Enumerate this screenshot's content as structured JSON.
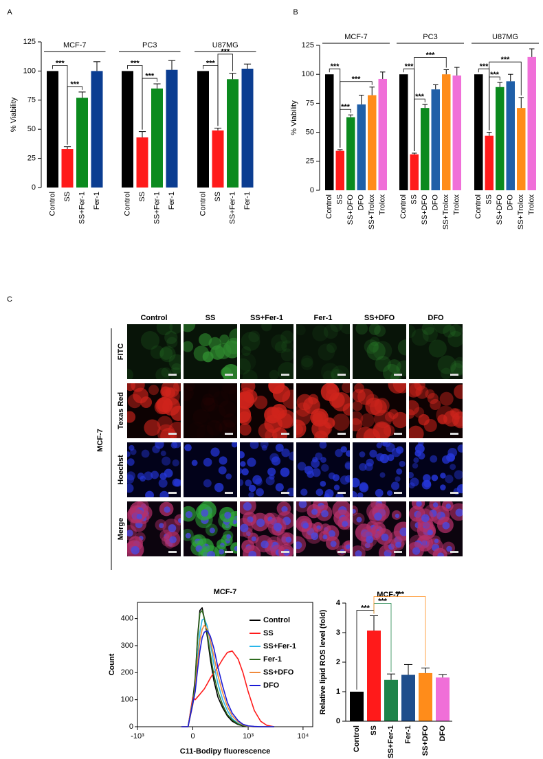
{
  "panel_labels": [
    "A",
    "B",
    "C"
  ],
  "chart_data": [
    {
      "type": "bar",
      "ylabel": "% Viability",
      "ylim": [
        0,
        125
      ],
      "yticks": [
        0,
        25,
        50,
        75,
        100,
        125
      ],
      "colors": [
        "#000000",
        "#ff1a1a",
        "#0b8a1e",
        "#0b3d91"
      ],
      "groups": [
        {
          "name": "MCF-7",
          "categories": [
            "Control",
            "SS",
            "SS+Fer-1",
            "Fer-1"
          ],
          "values": [
            100,
            33,
            77,
            100
          ],
          "errors": [
            0,
            2,
            5,
            8
          ],
          "significance": [
            {
              "label": "***",
              "between": [
                0,
                1
              ]
            },
            {
              "label": "***",
              "between": [
                1,
                2
              ]
            }
          ]
        },
        {
          "name": "PC3",
          "categories": [
            "Control",
            "SS",
            "SS+Fer-1",
            "Fer-1"
          ],
          "values": [
            100,
            43,
            85,
            101
          ],
          "errors": [
            0,
            5,
            4,
            8
          ],
          "significance": [
            {
              "label": "***",
              "between": [
                0,
                1
              ]
            },
            {
              "label": "***",
              "between": [
                1,
                2
              ]
            }
          ]
        },
        {
          "name": "U87MG",
          "categories": [
            "Control",
            "SS",
            "SS+Fer-1",
            "Fer-1"
          ],
          "values": [
            100,
            49,
            93,
            102
          ],
          "errors": [
            0,
            2,
            5,
            4
          ],
          "significance": [
            {
              "label": "***",
              "between": [
                0,
                1
              ]
            },
            {
              "label": "***",
              "between": [
                1,
                2
              ]
            }
          ]
        }
      ]
    },
    {
      "type": "bar",
      "ylabel": "% Viability",
      "ylim": [
        0,
        125
      ],
      "yticks": [
        0,
        25,
        50,
        75,
        100,
        125
      ],
      "colors": [
        "#000000",
        "#ff1a1a",
        "#0b8a1e",
        "#1f5fa8",
        "#ff8c1a",
        "#f06fd8"
      ],
      "groups": [
        {
          "name": "MCF-7",
          "categories": [
            "Control",
            "SS",
            "SS+DFO",
            "DFO",
            "SS+Trolox",
            "Trolox"
          ],
          "values": [
            100,
            34,
            63,
            74,
            82,
            96
          ],
          "errors": [
            0,
            1,
            2,
            8,
            7,
            6
          ],
          "significance": [
            {
              "label": "***",
              "between": [
                0,
                1
              ]
            },
            {
              "label": "***",
              "between": [
                1,
                2
              ]
            },
            {
              "label": "***",
              "between": [
                1,
                4
              ]
            }
          ]
        },
        {
          "name": "PC3",
          "categories": [
            "Control",
            "SS",
            "SS+DFO",
            "DFO",
            "SS+Trolox",
            "Trolox"
          ],
          "values": [
            100,
            31,
            71,
            87,
            100,
            99
          ],
          "errors": [
            0,
            1,
            3,
            4,
            4,
            7
          ],
          "significance": [
            {
              "label": "***",
              "between": [
                0,
                1
              ]
            },
            {
              "label": "***",
              "between": [
                1,
                2
              ]
            },
            {
              "label": "***",
              "between": [
                1,
                4
              ]
            }
          ]
        },
        {
          "name": "U87MG",
          "categories": [
            "Control",
            "SS",
            "SS+DFO",
            "DFO",
            "SS+Trolox",
            "Trolox"
          ],
          "values": [
            100,
            47,
            89,
            94,
            71,
            115
          ],
          "errors": [
            0,
            3,
            4,
            6,
            9,
            7
          ],
          "significance": [
            {
              "label": "***",
              "between": [
                0,
                1
              ]
            },
            {
              "label": "***",
              "between": [
                1,
                2
              ]
            },
            {
              "label": "***",
              "between": [
                1,
                4
              ]
            }
          ]
        }
      ]
    },
    {
      "type": "line",
      "title": "MCF-7",
      "xlabel": "C11-Bodipy fluorescence",
      "ylabel": "Count",
      "xscale": "biexponential",
      "xlim": [
        -1000,
        15000
      ],
      "xticks": [
        {
          "value": -1000,
          "label": "-10³"
        },
        0,
        {
          "value": 1000,
          "label": "10³"
        },
        {
          "value": 10000,
          "label": "10⁴"
        }
      ],
      "ylim": [
        0,
        460
      ],
      "yticks": [
        0,
        100,
        200,
        300,
        400
      ],
      "legend": "upper right",
      "x": [
        -100,
        -40,
        0,
        20,
        40,
        60,
        80,
        100,
        130,
        160,
        200,
        250,
        320,
        400,
        500,
        650,
        800,
        1000,
        1300,
        1700,
        2200,
        3000
      ],
      "series": [
        {
          "name": "Control",
          "color": "#000000",
          "values": [
            0,
            0,
            100,
            180,
            330,
            430,
            440,
            400,
            330,
            250,
            170,
            110,
            70,
            40,
            20,
            8,
            3,
            1,
            0,
            0,
            0,
            0
          ]
        },
        {
          "name": "SS",
          "color": "#ff1a1a",
          "values": [
            0,
            0,
            110,
            100,
            110,
            120,
            130,
            140,
            160,
            180,
            200,
            220,
            250,
            275,
            280,
            250,
            200,
            130,
            60,
            20,
            5,
            0
          ]
        },
        {
          "name": "SS+Fer-1",
          "color": "#29b6ea",
          "values": [
            0,
            0,
            95,
            150,
            260,
            350,
            395,
            400,
            370,
            310,
            230,
            160,
            100,
            60,
            30,
            12,
            5,
            2,
            0,
            0,
            0,
            0
          ]
        },
        {
          "name": "Fer-1",
          "color": "#2e6b1e",
          "values": [
            0,
            0,
            90,
            170,
            320,
            420,
            430,
            400,
            340,
            270,
            190,
            130,
            80,
            45,
            25,
            10,
            4,
            1,
            0,
            0,
            0,
            0
          ]
        },
        {
          "name": "SS+DFO",
          "color": "#f08a3c",
          "values": [
            0,
            0,
            80,
            140,
            240,
            320,
            360,
            375,
            360,
            320,
            260,
            190,
            125,
            75,
            40,
            18,
            7,
            2,
            0,
            0,
            0,
            0
          ]
        },
        {
          "name": "DFO",
          "color": "#1a1ad6",
          "values": [
            0,
            0,
            85,
            130,
            210,
            280,
            330,
            350,
            355,
            335,
            290,
            220,
            150,
            90,
            50,
            22,
            9,
            3,
            1,
            0,
            0,
            0
          ]
        }
      ]
    },
    {
      "type": "bar",
      "title": "MCF-7",
      "ylabel": "Relative lipid ROS level (fold)",
      "ylim": [
        0,
        4
      ],
      "yticks": [
        0,
        1,
        2,
        3,
        4
      ],
      "colors": [
        "#000000",
        "#ff1a1a",
        "#1e8449",
        "#1f4e8c",
        "#ff8c1a",
        "#f06fd8"
      ],
      "categories": [
        "Control",
        "SS",
        "SS+Fer-1",
        "Fer-1",
        "SS+DFO",
        "DFO"
      ],
      "values": [
        1,
        3.07,
        1.4,
        1.57,
        1.63,
        1.48
      ],
      "errors": [
        0,
        0.5,
        0.2,
        0.35,
        0.17,
        0.1
      ],
      "significance": [
        {
          "label": "***",
          "between": [
            0,
            1
          ],
          "color": "#000000"
        },
        {
          "label": "***",
          "between": [
            1,
            2
          ],
          "color": "#1e8449"
        },
        {
          "label": "***",
          "between": [
            1,
            4
          ],
          "color": "#ff8c1a"
        }
      ]
    }
  ],
  "micrographs": {
    "group_label": "MCF-7",
    "columns": [
      "Control",
      "SS",
      "SS+Fer-1",
      "Fer-1",
      "SS+DFO",
      "DFO"
    ],
    "rows": [
      "FITC",
      "Texas Red",
      "Hoechst",
      "Merge"
    ]
  }
}
